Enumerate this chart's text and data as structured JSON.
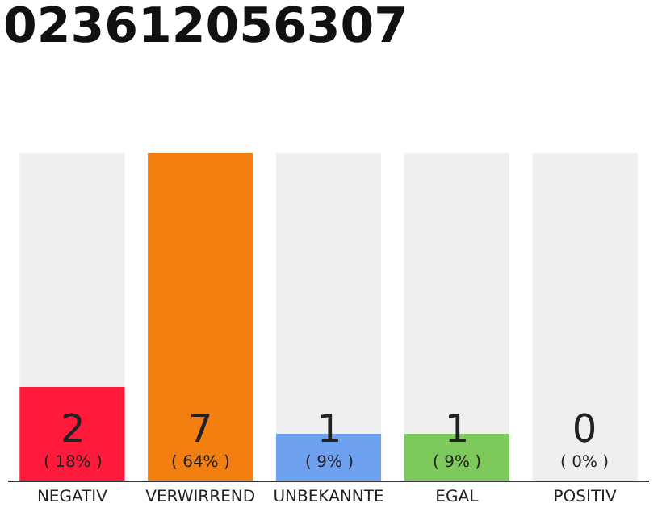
{
  "chart_data": {
    "type": "bar",
    "title": "023612056307",
    "categories": [
      "NEGATIV",
      "VERWIRREND",
      "UNBEKANNTE",
      "EGAL",
      "POSITIV"
    ],
    "values": [
      2,
      7,
      1,
      1,
      0
    ],
    "colors": [
      "#ff1a3c",
      "#f27e0f",
      "#6fa1f1",
      "#7ec95b",
      "#c8c8c8"
    ],
    "value_labels": [
      "2\n( 18% )",
      "7\n( 64% )",
      "1\n( 9% )",
      "1\n( 9% )",
      "0\n( 0% )"
    ],
    "bands": [
      {
        "axis": "x",
        "from": "NEGATIV",
        "to": "NEGATIV",
        "color": "#efefef"
      },
      {
        "axis": "x",
        "from": "UNBEKANNTE",
        "to": "UNBEKANNTE",
        "color": "#efefef"
      },
      {
        "axis": "x",
        "from": "EGAL",
        "to": "EGAL",
        "color": "#efefef"
      },
      {
        "axis": "x",
        "from": "POSITIV",
        "to": "POSITIV",
        "color": "#efefef"
      }
    ],
    "ylim": [
      0,
      7
    ],
    "tick_labels": "x",
    "grid": false,
    "legend": false
  }
}
